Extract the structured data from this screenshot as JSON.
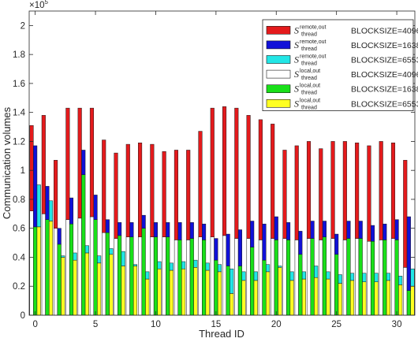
{
  "chart_data": {
    "type": "bar",
    "xlabel": "Thread ID",
    "ylabel": "Communication volumes",
    "y_multiplier": "×10",
    "y_multiplier_exp": "5",
    "ylim": [
      0,
      210000
    ],
    "yticks": [
      0,
      20000,
      40000,
      60000,
      80000,
      100000,
      120000,
      140000,
      160000,
      180000,
      200000
    ],
    "ytick_labels": [
      "0",
      "0.2",
      "0.4",
      "0.6",
      "0.8",
      "1",
      "1.2",
      "1.4",
      "1.6",
      "1.8",
      "2"
    ],
    "xlim": [
      -0.5,
      31.5
    ],
    "xticks": [
      0,
      5,
      10,
      15,
      20,
      25,
      30
    ],
    "xtick_labels": [
      "0",
      "5",
      "10",
      "15",
      "20",
      "25",
      "30"
    ],
    "grid": false,
    "legend_position": "top-right",
    "x": [
      0,
      1,
      2,
      3,
      4,
      5,
      6,
      7,
      8,
      9,
      10,
      11,
      12,
      13,
      14,
      15,
      16,
      17,
      18,
      19,
      20,
      21,
      22,
      23,
      24,
      25,
      26,
      27,
      28,
      29,
      30,
      31
    ],
    "groups": [
      {
        "stack": [
          {
            "legend_index": 3,
            "values": [
              72000,
              70000,
              60000,
              66000,
              67000,
              68000,
              57000,
              53000,
              54000,
              54000,
              54000,
              54000,
              52000,
              52000,
              54000,
              54000,
              55000,
              53000,
              53000,
              52000,
              53000,
              53000,
              52000,
              53000,
              52000,
              53000,
              52000,
              53000,
              51000,
              52000,
              53000,
              33000
            ]
          },
          {
            "legend_index": 0,
            "values": [
              59000,
              68000,
              47000,
              77000,
              76000,
              75000,
              64000,
              59000,
              64000,
              65000,
              64000,
              59000,
              62000,
              62000,
              73000,
              89000,
              89000,
              90000,
              85000,
              83000,
              79000,
              61000,
              65000,
              67000,
              63000,
              67000,
              68000,
              66000,
              66000,
              68000,
              66000,
              74000
            ]
          }
        ]
      },
      {
        "stack": [
          {
            "legend_index": 4,
            "values": [
              61000,
              66000,
              49000,
              63000,
              97000,
              66000,
              57000,
              55000,
              54000,
              60000,
              54000,
              54000,
              52000,
              53000,
              52000,
              38000,
              34000,
              34000,
              47000,
              38000,
              52000,
              52000,
              42000,
              53000,
              54000,
              42000,
              53000,
              53000,
              51000,
              52000,
              52000,
              17000
            ]
          },
          {
            "legend_index": 1,
            "values": [
              56000,
              23000,
              11000,
              18000,
              17000,
              17000,
              9000,
              9000,
              10000,
              9000,
              10000,
              10000,
              12000,
              11000,
              11000,
              15000,
              22000,
              25000,
              18000,
              25000,
              16000,
              12000,
              16000,
              12000,
              11000,
              14000,
              12000,
              12000,
              11000,
              11000,
              14000,
              51000
            ]
          }
        ]
      },
      {
        "stack": [
          {
            "legend_index": 5,
            "values": [
              61000,
              65000,
              40000,
              38000,
              43000,
              36000,
              42000,
              34000,
              34000,
              25000,
              32000,
              31000,
              32000,
              33000,
              31000,
              30000,
              15000,
              24000,
              24000,
              30000,
              33000,
              24000,
              25000,
              26000,
              25000,
              22000,
              24000,
              23000,
              23000,
              24000,
              21000,
              20000
            ]
          },
          {
            "legend_index": 2,
            "values": [
              29000,
              14000,
              1000,
              5000,
              5000,
              5000,
              4000,
              10000,
              1000,
              5000,
              5000,
              5000,
              5000,
              5000,
              5000,
              5000,
              17000,
              6000,
              6000,
              5000,
              1000,
              6000,
              5000,
              8000,
              5000,
              6000,
              5000,
              6000,
              6000,
              5000,
              6000,
              12000
            ]
          }
        ]
      }
    ],
    "legend": [
      {
        "symbol": "S",
        "sup": "remote,out",
        "sub": "thread",
        "label": "BLOCKSIZE=4096",
        "color": "#e41a1c"
      },
      {
        "symbol": "S",
        "sup": "remote,out",
        "sub": "thread",
        "label": "BLOCKSIZE=16384",
        "color": "#1010d8"
      },
      {
        "symbol": "S",
        "sup": "remote,out",
        "sub": "thread",
        "label": "BLOCKSIZE=65536",
        "color": "#22e6e6"
      },
      {
        "symbol": "S",
        "sup": "local,out",
        "sub": "thread",
        "label": "BLOCKSIZE=4096",
        "color": "#ffffff"
      },
      {
        "symbol": "S",
        "sup": "local,out",
        "sub": "thread",
        "label": "BLOCKSIZE=16384",
        "color": "#19e019"
      },
      {
        "symbol": "S",
        "sup": "local,out",
        "sub": "thread",
        "label": "BLOCKSIZE=65536",
        "color": "#ffff22"
      }
    ]
  }
}
